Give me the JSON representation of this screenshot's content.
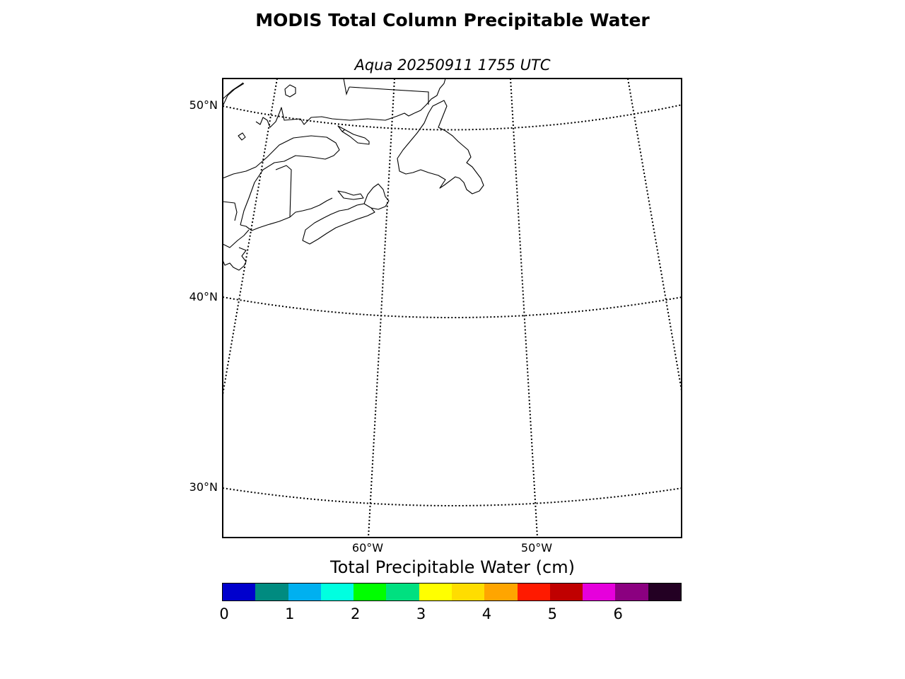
{
  "title": "MODIS Total Column Precipitable Water",
  "subtitle": "Aqua 20250911 1755 UTC",
  "map": {
    "lat_labels": [
      {
        "key": "lat50",
        "text": "50°N"
      },
      {
        "key": "lat40",
        "text": "40°N"
      },
      {
        "key": "lat30",
        "text": "30°N"
      }
    ],
    "lon_labels": [
      {
        "key": "lon60",
        "text": "60°W"
      },
      {
        "key": "lon50",
        "text": "50°W"
      }
    ]
  },
  "colorbar": {
    "title": "Total Precipitable Water (cm)",
    "colors": [
      "#0000cd",
      "#008b80",
      "#00b0f0",
      "#00ffe0",
      "#00ff00",
      "#00e080",
      "#ffff00",
      "#ffdd00",
      "#ffa500",
      "#ff1a00",
      "#c00000",
      "#e600dc",
      "#8b0080",
      "#230023"
    ],
    "ticks": [
      "0",
      "1",
      "2",
      "3",
      "4",
      "5",
      "6"
    ]
  }
}
